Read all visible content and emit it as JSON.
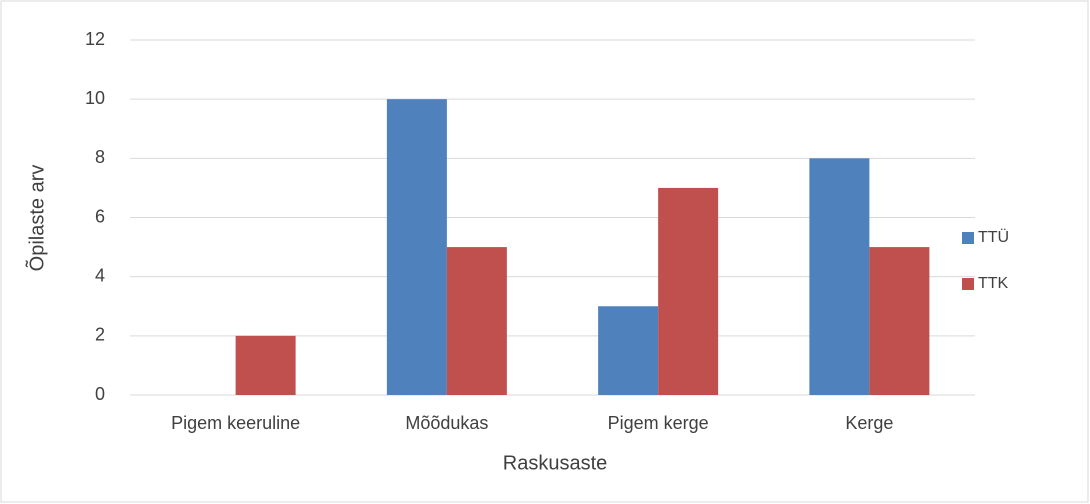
{
  "chart_data": {
    "type": "bar",
    "categories": [
      "Pigem keeruline",
      "Mõõdukas",
      "Pigem kerge",
      "Kerge"
    ],
    "series": [
      {
        "name": "TTÜ",
        "color": "#4f81bd",
        "values": [
          0,
          10,
          3,
          8
        ]
      },
      {
        "name": "TTK",
        "color": "#c0504d",
        "values": [
          2,
          5,
          7,
          5
        ]
      }
    ],
    "xlabel": "Raskusaste",
    "ylabel": "Õpilaste arv",
    "ylim": [
      0,
      12
    ],
    "yticks": [
      0,
      2,
      4,
      6,
      8,
      10,
      12
    ],
    "grid": true,
    "legend": "right"
  }
}
